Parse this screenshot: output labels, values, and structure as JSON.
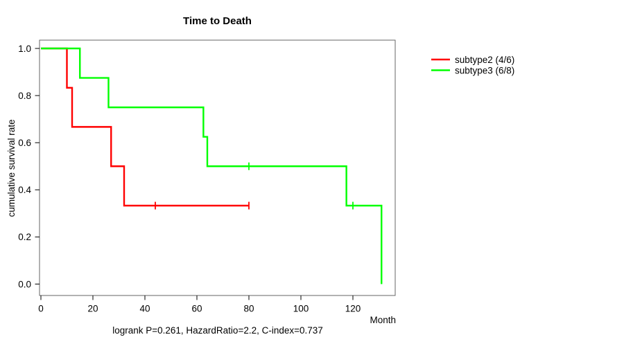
{
  "title": "Time to Death",
  "subtitle": "logrank P=0.261, HazardRatio=2.2, C-index=0.737",
  "legend": [
    {
      "label": "subtype2 (4/6)",
      "color": "#ff0000"
    },
    {
      "label": "subtype3 (6/8)",
      "color": "#00ff00"
    }
  ],
  "colors": {
    "series1": "#ff0000",
    "series2": "#00ff00",
    "box": "#666666",
    "axis": "#000000",
    "background": "#ffffff"
  },
  "chart_data": {
    "type": "line",
    "variant": "kaplan-meier-step",
    "title": "Time to Death",
    "xlabel": "Month",
    "ylabel": "cumulative survival rate",
    "xticks": [
      0,
      20,
      40,
      60,
      80,
      100,
      120
    ],
    "yticks": [
      0.0,
      0.2,
      0.4,
      0.6,
      0.8,
      1.0
    ],
    "xlim": [
      0,
      136
    ],
    "ylim": [
      0,
      1
    ],
    "grid": false,
    "legend_position": "right-outside",
    "annotation": "logrank P=0.261, HazardRatio=2.2, C-index=0.737",
    "series": [
      {
        "name": "subtype2 (4/6)",
        "color": "#ff0000",
        "events_over_n": "4/6",
        "steps": [
          [
            0,
            1.0
          ],
          [
            10,
            0.833
          ],
          [
            12,
            0.667
          ],
          [
            27,
            0.5
          ],
          [
            32,
            0.333
          ]
        ],
        "end_time": 80,
        "censor_marks": [
          [
            44,
            0.333
          ],
          [
            80,
            0.333
          ]
        ]
      },
      {
        "name": "subtype3 (6/8)",
        "color": "#00ff00",
        "events_over_n": "6/8",
        "steps": [
          [
            0,
            1.0
          ],
          [
            15,
            0.875
          ],
          [
            26,
            0.75
          ],
          [
            62.5,
            0.625
          ],
          [
            64,
            0.5
          ],
          [
            117.5,
            0.333
          ],
          [
            131,
            0.0
          ]
        ],
        "end_time": 131,
        "censor_marks": [
          [
            80,
            0.5
          ],
          [
            120,
            0.333
          ]
        ]
      }
    ]
  }
}
